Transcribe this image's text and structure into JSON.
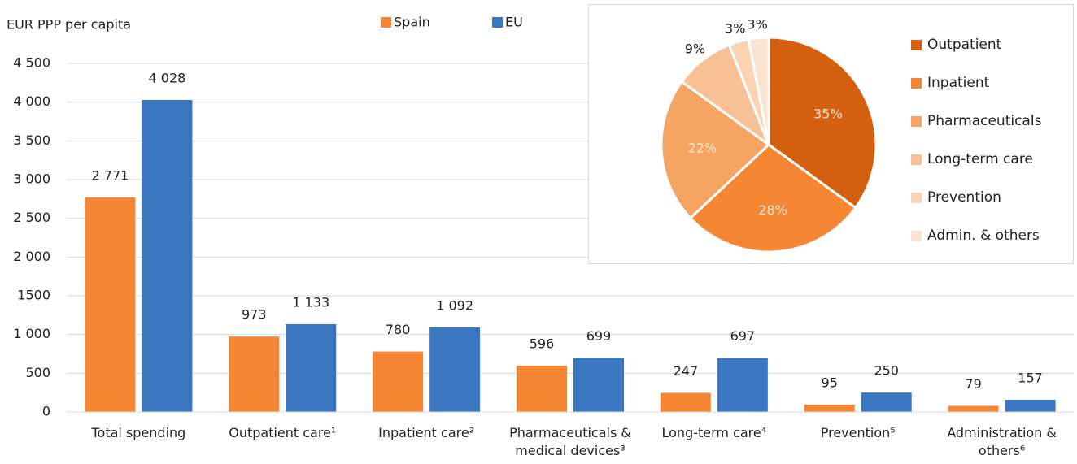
{
  "chart_data": [
    {
      "type": "bar",
      "y_label": "EUR PPP per capita",
      "categories": [
        "Total spending",
        "Outpatient care¹",
        "Inpatient care²",
        "Pharmaceuticals & medical devices³",
        "Long-term care⁴",
        "Prevention⁵",
        "Administration & others⁶"
      ],
      "series": [
        {
          "name": "Spain",
          "color": "#f58634",
          "values": [
            2771,
            973,
            780,
            596,
            247,
            95,
            79
          ],
          "value_labels": [
            "2 771",
            "973",
            "780",
            "596",
            "247",
            "95",
            "79"
          ]
        },
        {
          "name": "EU",
          "color": "#3a77c0",
          "values": [
            4028,
            1133,
            1092,
            699,
            697,
            250,
            157
          ],
          "value_labels": [
            "4 028",
            "1 133",
            "1 092",
            "699",
            "697",
            "250",
            "157"
          ]
        }
      ],
      "ylim": [
        0,
        4500
      ],
      "yticks": [
        0,
        500,
        {
          "value": 1000,
          "label": "1 000"
        },
        {
          "value": 1500,
          "label": "1500"
        },
        {
          "value": 2000,
          "label": "2 000"
        },
        {
          "value": 2500,
          "label": "2 500"
        },
        {
          "value": 3000,
          "label": "3 000"
        },
        {
          "value": 3500,
          "label": "3 500"
        },
        {
          "value": 4000,
          "label": "4 000"
        },
        {
          "value": 4500,
          "label": "4 500"
        }
      ],
      "grid": true
    },
    {
      "type": "pie",
      "categories": [
        "Outpatient",
        "Inpatient",
        "Pharmaceuticals",
        "Long-term care",
        "Prevention",
        "Admin. & others"
      ],
      "values": [
        35,
        28,
        22,
        9,
        3,
        3
      ],
      "value_labels": [
        "35%",
        "28%",
        "22%",
        "9%",
        "3%",
        "3%"
      ],
      "colors": [
        "#d45f0e",
        "#f58634",
        "#f5a462",
        "#f8c095",
        "#fad3b3",
        "#fbe3d2"
      ]
    }
  ]
}
